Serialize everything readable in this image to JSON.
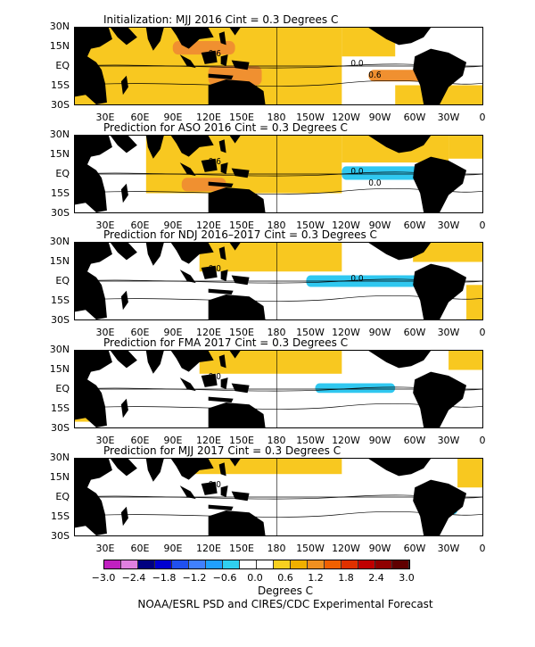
{
  "panels": [
    {
      "title": "Initialization: MJJ 2016  Cint = 0.3 Degrees C",
      "contour_labels": [
        "0.6",
        "0.0",
        "0.6"
      ]
    },
    {
      "title": "Prediction for ASO 2016  Cint = 0.3 Degrees C",
      "contour_labels": [
        "0.6",
        "0.0",
        "0.0"
      ]
    },
    {
      "title": "Prediction for NDJ 2016–2017  Cint = 0.3 Degrees C",
      "contour_labels": [
        "0.0",
        "0.0"
      ]
    },
    {
      "title": "Prediction for FMA 2017  Cint = 0.3 Degrees C",
      "contour_labels": [
        "0.0"
      ]
    },
    {
      "title": "Prediction for MJJ 2017  Cint = 0.3 Degrees C",
      "contour_labels": [
        "0.0"
      ]
    }
  ],
  "lat_labels": [
    "30N",
    "15N",
    "EQ",
    "15S",
    "30S"
  ],
  "lon_labels": [
    "30E",
    "60E",
    "90E",
    "120E",
    "150E",
    "180",
    "150W",
    "120W",
    "90W",
    "60W",
    "30W",
    "0"
  ],
  "colorbar": {
    "colors": [
      "#c020c0",
      "#e080e0",
      "#000080",
      "#0000d0",
      "#2050f0",
      "#4080ff",
      "#20a0ff",
      "#30d0f0",
      "#ffffff",
      "#ffffff",
      "#f8d020",
      "#f0b000",
      "#f09020",
      "#f06000",
      "#e03000",
      "#c00000",
      "#900000",
      "#600000"
    ],
    "labels": [
      "−3.0",
      "−2.4",
      "−1.8",
      "−1.2",
      "−0.6",
      "0.0",
      "0.6",
      "1.2",
      "1.8",
      "2.4",
      "3.0"
    ]
  },
  "units": "Degrees C",
  "footer": "NOAA/ESRL PSD and CIRES/CDC Experimental Forecast"
}
